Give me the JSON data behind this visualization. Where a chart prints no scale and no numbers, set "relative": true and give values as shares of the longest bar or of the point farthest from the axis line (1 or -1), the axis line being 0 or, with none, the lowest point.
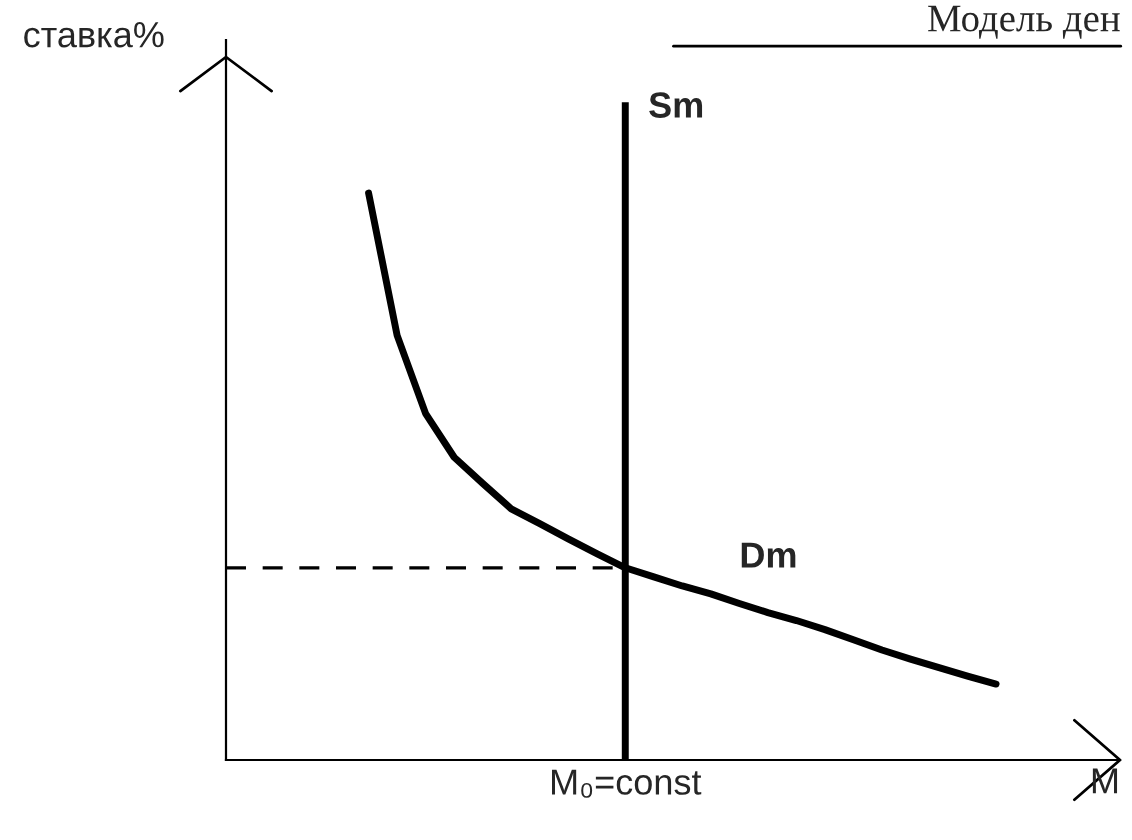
{
  "chart_data": {
    "type": "line",
    "title": "Модель ден",
    "ylabel": "ставка%",
    "xlabel": "M",
    "relative": true,
    "legend": false,
    "marker": "none",
    "categories": [
      null,
      null,
      null,
      null,
      null,
      null,
      null,
      null,
      null,
      null,
      null,
      null,
      null,
      null,
      null,
      null,
      null,
      null,
      null,
      null,
      null,
      null,
      null,
      null,
      null,
      null,
      null,
      null
    ],
    "series": [
      {
        "name": "Dm",
        "color": "#000000",
        "values": [
          null,
          null,
          null,
          null,
          null,
          1,
          0.749,
          0.611,
          0.534,
          0.488,
          0.443,
          0.417,
          0.39,
          0.364,
          0.339,
          0.323,
          0.307,
          0.293,
          0.276,
          0.26,
          0.246,
          0.23,
          0.212,
          0.194,
          0.178,
          0.163,
          0.148,
          0.134
        ]
      }
    ],
    "ref_lines": [
      {
        "axis": "y",
        "value": 0.339,
        "color": "#000000",
        "line_style": "dashed"
      }
    ],
    "annotations": [
      "Sm",
      "M₀=const"
    ]
  }
}
